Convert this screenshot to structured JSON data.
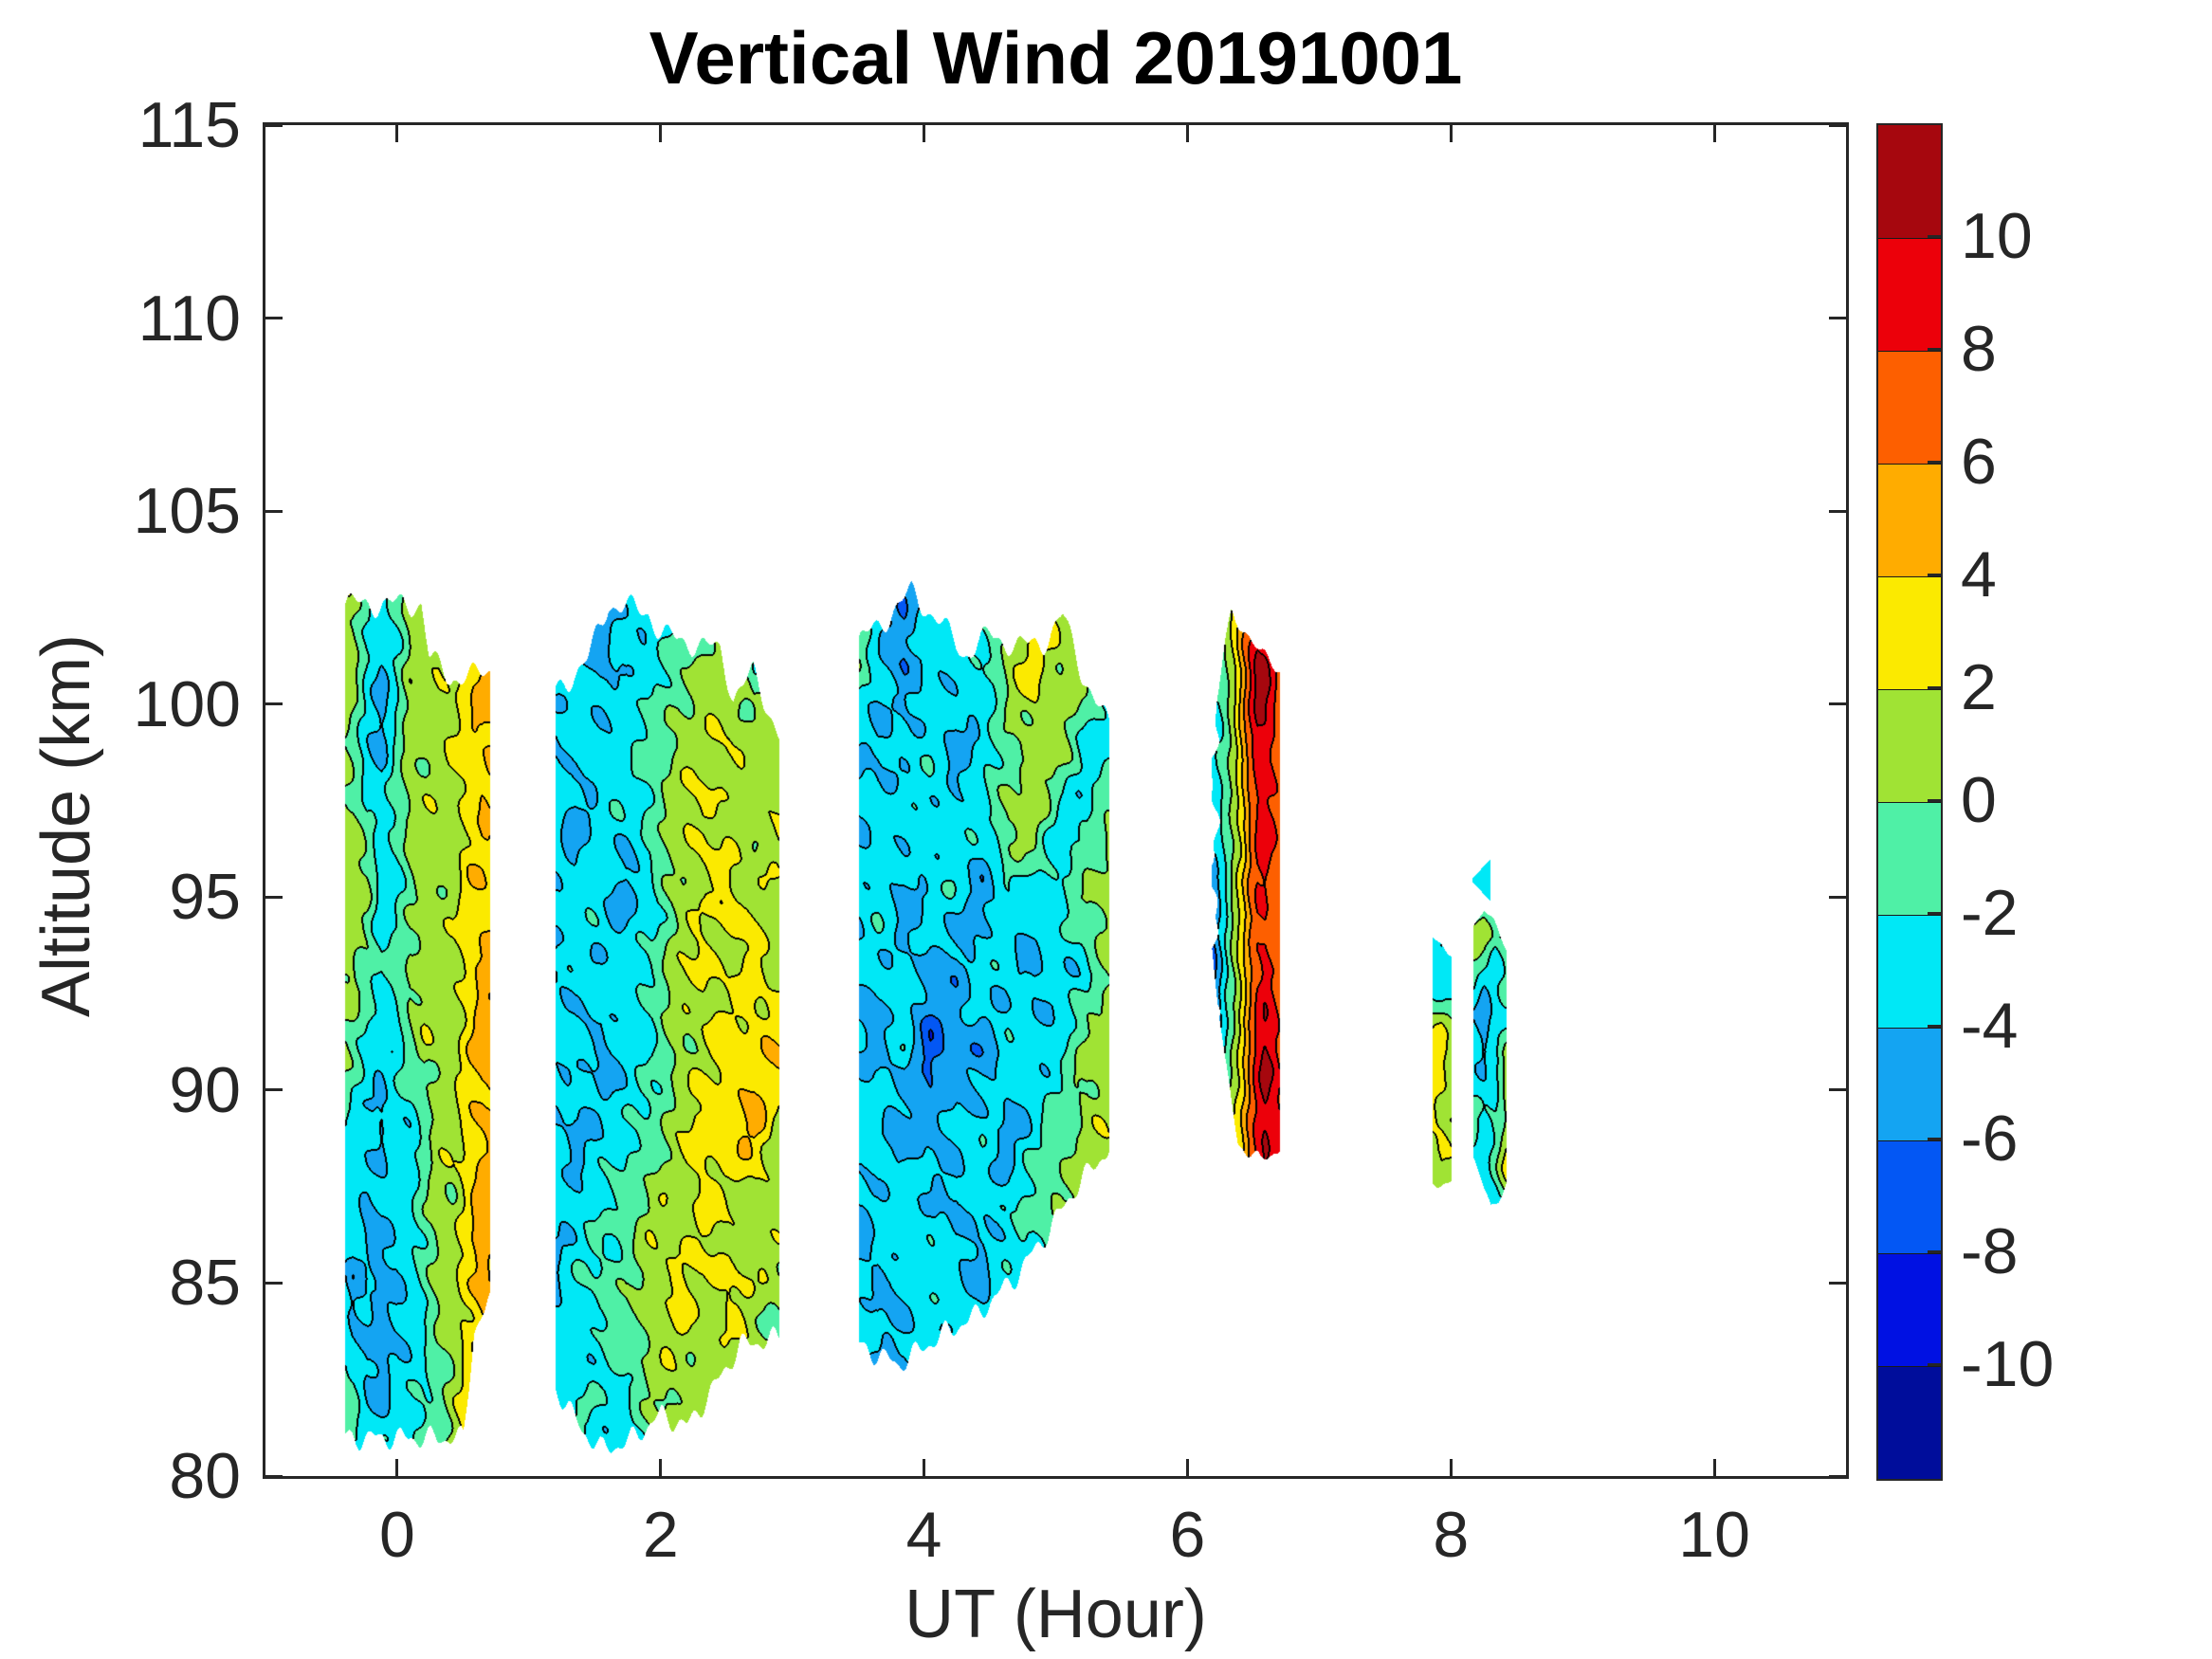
{
  "title": "Vertical Wind 20191001",
  "axes": {
    "xlabel": "UT (Hour)",
    "ylabel": "Altitude (km)",
    "xlim": [
      -1,
      11
    ],
    "ylim": [
      80,
      115
    ],
    "xtick_values": [
      0,
      2,
      4,
      6,
      8,
      10
    ],
    "xtick_labels": [
      "0",
      "2",
      "4",
      "6",
      "8",
      "10"
    ],
    "ytick_values": [
      80,
      85,
      90,
      95,
      100,
      105,
      110,
      115
    ],
    "ytick_labels": [
      "80",
      "85",
      "90",
      "95",
      "100",
      "105",
      "110",
      "115"
    ],
    "axis_color": "#262626"
  },
  "colorbar": {
    "orientation": "vertical",
    "tick_values": [
      10,
      8,
      6,
      4,
      2,
      0,
      -2,
      -4,
      -6,
      -8,
      -10
    ],
    "tick_labels": [
      "10",
      "8",
      "6",
      "4",
      "2",
      "0",
      "-2",
      "-4",
      "-6",
      "-8",
      "-10"
    ],
    "colors_top_to_bottom": [
      "#a6070e",
      "#ec000a",
      "#fd5f00",
      "#ffac00",
      "#fbea00",
      "#a0e334",
      "#4ff0a6",
      "#00e8f6",
      "#14a4f2",
      "#0357f4",
      "#0011e3",
      "#000d9b"
    ],
    "clim": [
      -12,
      12
    ],
    "level_step": 2
  },
  "chart_data": {
    "type": "filled_contour",
    "title": "Vertical Wind 20191001",
    "xlabel": "UT (Hour)",
    "ylabel": "Altitude (km)",
    "x_range": [
      -1,
      11
    ],
    "y_range": [
      80,
      115
    ],
    "contour_interval": 2,
    "colormap": "jet",
    "contour_line_color": "#000000",
    "patches": [
      {
        "name": "patch-0h",
        "t0": -0.4,
        "t1": 0.7,
        "na": 0.85,
        "en": 1.0,
        "topT": [
          -0.4,
          0.18,
          0.24,
          0.4,
          0.55,
          0.7
        ],
        "topA": [
          102.6,
          102.6,
          101.2,
          100.7,
          100.7,
          100.9
        ],
        "botT": [
          -0.4,
          0.5,
          0.58,
          0.7
        ],
        "botA": [
          81.0,
          81.0,
          83.8,
          84.5
        ],
        "gt0": -0.45,
        "gdt": 0.109,
        "galt0": 103,
        "gdalt": 2,
        "values": [
          [
            2,
            1,
            -1,
            -3,
            -2,
            1,
            1,
            1,
            1,
            3,
            4,
            4
          ],
          [
            1,
            1,
            -3,
            -4,
            -2,
            1,
            1,
            2,
            1,
            3,
            5,
            4
          ],
          [
            1,
            -1,
            -3,
            -5,
            -2,
            1,
            1,
            1,
            2,
            3,
            4,
            5
          ],
          [
            1,
            1,
            -2,
            -3,
            -1,
            1,
            1,
            1,
            1,
            3,
            4,
            3
          ],
          [
            1,
            1,
            1,
            -3,
            -3,
            -1,
            1,
            1,
            1,
            3,
            3,
            4
          ],
          [
            1,
            1,
            -1,
            -3,
            -1,
            1,
            1,
            1,
            1,
            3,
            5,
            5
          ],
          [
            1,
            -1,
            -3,
            -3,
            -3,
            -1,
            1,
            1,
            1,
            3,
            5,
            4
          ],
          [
            -1,
            -3,
            -3,
            -5,
            -3,
            -3,
            -1,
            1,
            1,
            3,
            4,
            5
          ],
          [
            -3,
            -3,
            -5,
            -3,
            -3,
            -3,
            -1,
            1,
            1,
            3,
            5,
            5
          ],
          [
            -3,
            -5,
            -3,
            -5,
            -5,
            -3,
            -1,
            1,
            1,
            3,
            5,
            4
          ],
          [
            -1,
            -3,
            -5,
            -5,
            -3,
            -3,
            -3,
            -1,
            1,
            3,
            4,
            4
          ],
          [
            -1,
            -1,
            -3,
            -3,
            -3,
            -3,
            -1,
            -1,
            1,
            3,
            3,
            3
          ]
        ]
      },
      {
        "name": "patch-2h",
        "t0": 1.2,
        "t1": 2.9,
        "na": 0.9,
        "en": 1.0,
        "topT": [
          1.2,
          1.45,
          1.6,
          1.9,
          2.0,
          2.45,
          2.55,
          2.7,
          2.9
        ],
        "topA": [
          100.3,
          101.2,
          102.6,
          102.4,
          101.8,
          101.4,
          100.2,
          100.8,
          99.2
        ],
        "botT": [
          1.2,
          1.4,
          1.55,
          1.75,
          2.0,
          2.2,
          2.4,
          2.6,
          2.9
        ],
        "botA": [
          82.3,
          81.2,
          80.7,
          80.9,
          81.6,
          81.3,
          82.3,
          83.4,
          83.6
        ],
        "gt0": 1.15,
        "gdt": 0.195,
        "galt0": 103,
        "gdalt": 2,
        "values": [
          [
            -4,
            -5,
            -6,
            -4,
            -3,
            -3,
            -3,
            -2,
            -1,
            -1
          ],
          [
            -3,
            -3,
            -5,
            -3,
            -3,
            -1,
            1,
            1,
            -1,
            1
          ],
          [
            -4,
            -3,
            -3,
            -3,
            -1,
            1,
            1,
            2,
            1,
            1
          ],
          [
            -3,
            -5,
            -3,
            -3,
            -1,
            1,
            3,
            1,
            1,
            2
          ],
          [
            -3,
            -3,
            -3,
            -5,
            -3,
            1,
            1,
            3,
            1,
            1
          ],
          [
            -5,
            -3,
            -3,
            -3,
            -1,
            1,
            3,
            1,
            3,
            1
          ],
          [
            -3,
            -3,
            -5,
            -3,
            -3,
            1,
            1,
            3,
            3,
            4
          ],
          [
            -3,
            -5,
            -3,
            -3,
            -1,
            1,
            3,
            3,
            5,
            1
          ],
          [
            -3,
            -3,
            -3,
            -1,
            1,
            1,
            3,
            1,
            1,
            1
          ],
          [
            -5,
            -3,
            -1,
            -1,
            1,
            3,
            1,
            3,
            1,
            1
          ],
          [
            -3,
            -3,
            -3,
            -1,
            1,
            1,
            1,
            1,
            1,
            -1
          ],
          [
            -3,
            -1,
            -3,
            -3,
            -1,
            1,
            1,
            -1,
            -1,
            -1
          ]
        ]
      },
      {
        "name": "patch-4h",
        "t0": 3.5,
        "t1": 5.4,
        "na": 0.9,
        "en": 1.0,
        "topT": [
          3.5,
          3.7,
          3.9,
          4.1,
          4.3,
          4.5,
          4.7,
          4.9,
          5.05,
          5.2,
          5.4
        ],
        "topA": [
          101.6,
          102.2,
          102.9,
          102.2,
          101.3,
          101.8,
          101.5,
          101.6,
          102.3,
          100.8,
          99.4
        ],
        "botT": [
          3.5,
          3.8,
          4.1,
          4.4,
          4.7,
          4.95,
          5.15,
          5.4
        ],
        "botA": [
          83.4,
          82.9,
          83.6,
          84.2,
          85.2,
          86.4,
          87.5,
          88.5
        ],
        "gt0": 3.45,
        "gdt": 0.198,
        "galt0": 103,
        "gdalt": 2,
        "values": [
          [
            -3,
            -3,
            -5,
            -3,
            -3,
            -1,
            1,
            1,
            3,
            1,
            -1
          ],
          [
            1,
            -3,
            -6,
            -3,
            -3,
            -3,
            1,
            3,
            1,
            1,
            -3
          ],
          [
            -3,
            -5,
            -3,
            -3,
            -5,
            -3,
            -1,
            1,
            1,
            -3,
            -3
          ],
          [
            -5,
            -3,
            -3,
            -3,
            -3,
            -3,
            1,
            1,
            -3,
            -3,
            1
          ],
          [
            -3,
            -3,
            -5,
            -3,
            -3,
            -5,
            -3,
            -3,
            -3,
            1,
            1
          ],
          [
            -5,
            -3,
            -3,
            -5,
            -5,
            -3,
            -3,
            -5,
            -3,
            -3,
            1
          ],
          [
            -3,
            -5,
            -3,
            -7,
            -5,
            -5,
            -3,
            -3,
            -3,
            1,
            1
          ],
          [
            -3,
            -3,
            -5,
            -5,
            -3,
            -3,
            -5,
            -3,
            -1,
            1,
            1
          ],
          [
            -5,
            -3,
            -3,
            -3,
            -5,
            -3,
            -3,
            -1,
            1,
            1,
            1
          ],
          [
            -3,
            -5,
            -3,
            -3,
            -3,
            -5,
            -3,
            -3,
            1,
            1,
            1
          ],
          [
            -3,
            -3,
            -5,
            -3,
            -3,
            -3,
            -1,
            -1,
            -1,
            1,
            1
          ]
        ]
      },
      {
        "name": "patch-6.5h-red-streak",
        "t0": 6.18,
        "t1": 6.7,
        "na": 0.55,
        "en": 0.6,
        "ragL": true,
        "topT": [
          6.18,
          6.28,
          6.33,
          6.42,
          6.55,
          6.7
        ],
        "topA": [
          99.0,
          101.5,
          102.4,
          102.0,
          101.3,
          100.9
        ],
        "botT": [
          6.18,
          6.28,
          6.38,
          6.55,
          6.7
        ],
        "botA": [
          93.8,
          90.8,
          88.6,
          88.2,
          88.5
        ],
        "gt0": 6.18,
        "gdt": 0.0578,
        "galt0": 102.5,
        "gdalt": 2,
        "values": [
          [
            -2,
            -1,
            1,
            3,
            6,
            8,
            9,
            8,
            8,
            7
          ],
          [
            -3,
            -2,
            0,
            2,
            5,
            8,
            11,
            11,
            9,
            7
          ],
          [
            -3,
            -2,
            -1,
            1,
            4,
            7,
            9,
            9,
            8,
            7
          ],
          [
            -4,
            -3,
            -1,
            1,
            3,
            6,
            8,
            9,
            8,
            7
          ],
          [
            -6,
            -4,
            -2,
            1,
            3,
            6,
            8,
            8,
            7,
            7
          ],
          [
            -8,
            -5,
            -2,
            0,
            3,
            6,
            8,
            9,
            8,
            7
          ],
          [
            -5,
            -3,
            -1,
            1,
            3,
            6,
            9,
            11,
            10,
            8
          ],
          [
            -4,
            -2,
            0,
            2,
            4,
            7,
            9,
            10,
            9,
            8
          ]
        ]
      },
      {
        "name": "patch-8h-sliver-left",
        "t0": 7.86,
        "t1": 8.0,
        "na": 0.7,
        "en": 0.5,
        "topT": [
          7.86,
          8.0
        ],
        "topA": [
          94.1,
          93.5
        ],
        "botT": [
          7.86,
          8.0
        ],
        "botA": [
          87.5,
          87.7
        ],
        "gt0": 7.85,
        "gdt": 0.075,
        "galt0": 94.5,
        "gdalt": 1,
        "values": [
          [
            -3,
            -3,
            -3
          ],
          [
            -3,
            -4,
            -3
          ],
          [
            -1,
            -3,
            -3
          ],
          [
            1,
            3,
            1
          ],
          [
            3,
            3,
            1
          ],
          [
            3,
            1,
            1
          ],
          [
            1,
            3,
            1
          ],
          [
            1,
            1,
            1
          ]
        ]
      },
      {
        "name": "patch-8.3h-sliver-right",
        "t0": 8.17,
        "t1": 8.42,
        "na": 0.7,
        "en": 0.5,
        "topT": [
          8.17,
          8.25,
          8.42
        ],
        "topA": [
          94.3,
          94.8,
          93.6
        ],
        "botT": [
          8.17,
          8.3,
          8.42
        ],
        "botA": [
          88.3,
          86.9,
          87.6
        ],
        "gt0": 8.16,
        "gdt": 0.087,
        "galt0": 95,
        "gdalt": 1,
        "values": [
          [
            -3,
            -3,
            -3,
            -3
          ],
          [
            1,
            2,
            -1,
            1
          ],
          [
            -1,
            -3,
            -3,
            -1
          ],
          [
            -3,
            -5,
            -3,
            -3
          ],
          [
            -3,
            -5,
            -3,
            1
          ],
          [
            -3,
            -3,
            -3,
            1
          ],
          [
            -1,
            -3,
            -1,
            1
          ],
          [
            -3,
            -3,
            -1,
            3
          ],
          [
            -5,
            -3,
            -3,
            -1
          ]
        ]
      },
      {
        "name": "patch-8.2h-tiny-triangle",
        "t0": 8.16,
        "t1": 8.3,
        "na": 0.3,
        "en": 0.0,
        "topT": [
          8.16,
          8.3
        ],
        "topA": [
          95.5,
          96.0
        ],
        "botT": [
          8.16,
          8.3
        ],
        "botA": [
          95.4,
          94.9
        ],
        "gt0": 8.15,
        "gdt": 0.16,
        "galt0": 96.2,
        "gdalt": 1.4,
        "values": [
          [
            -3,
            -3
          ],
          [
            -3,
            -3
          ]
        ]
      }
    ]
  }
}
